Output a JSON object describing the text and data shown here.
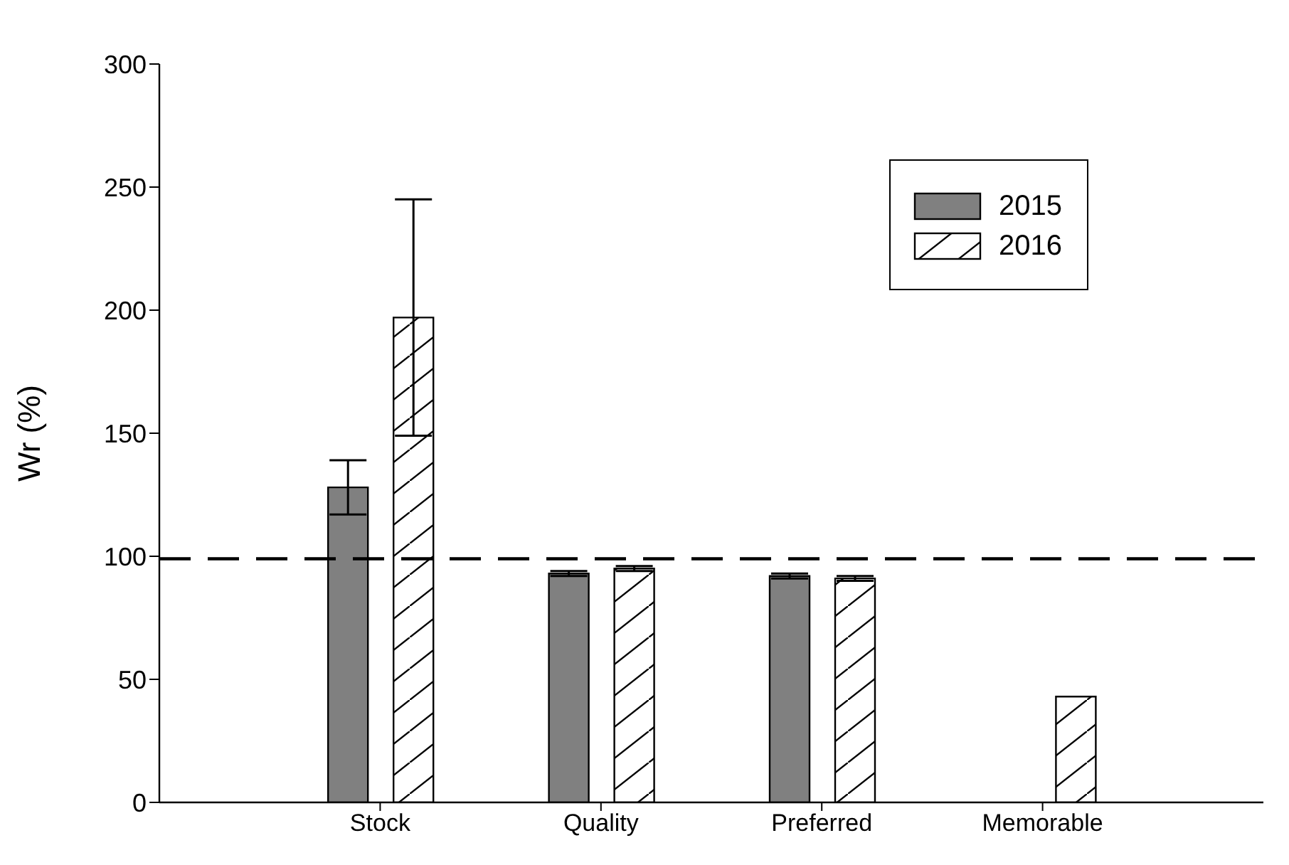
{
  "chart_data": {
    "type": "bar",
    "ylabel": "Wr (%)",
    "categories": [
      "Stock",
      "Quality",
      "Preferred",
      "Memorable"
    ],
    "series": [
      {
        "name": "2015",
        "color": "#808080",
        "values": [
          128,
          93,
          92,
          null
        ],
        "errors": [
          11,
          1,
          1,
          null
        ]
      },
      {
        "name": "2016",
        "color": "#000000",
        "values": [
          197,
          95,
          91,
          43
        ],
        "errors": [
          48,
          1,
          1,
          null
        ]
      }
    ],
    "ylim": [
      0,
      300
    ],
    "yticks": [
      0,
      50,
      100,
      150,
      200,
      250,
      300
    ],
    "ref_lines": [
      {
        "axis": "y",
        "value": 99,
        "color": "#000000",
        "line_style": "dashed"
      }
    ],
    "legend": "top right",
    "grid": false
  }
}
